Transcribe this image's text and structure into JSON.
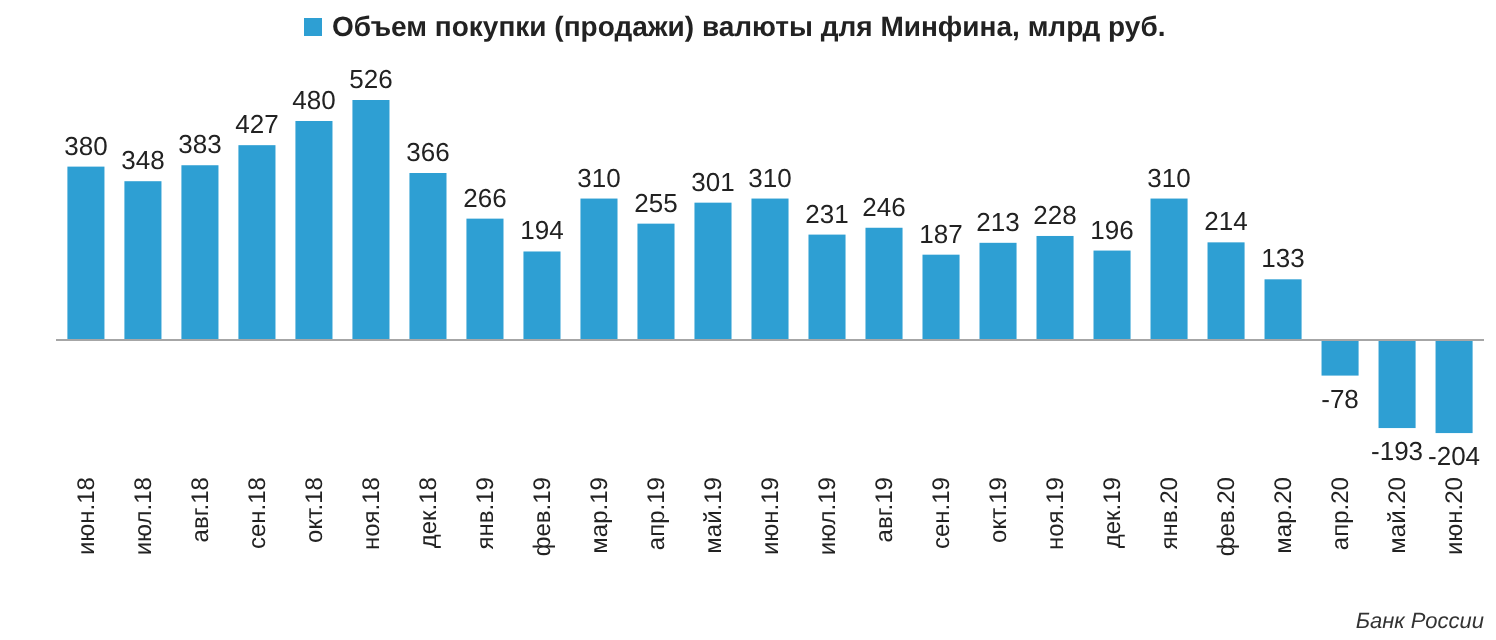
{
  "chart_data": {
    "type": "bar",
    "categories": [
      "июн.18",
      "июл.18",
      "авг.18",
      "сен.18",
      "окт.18",
      "ноя.18",
      "дек.18",
      "янв.19",
      "фев.19",
      "мар.19",
      "апр.19",
      "май.19",
      "июн.19",
      "июл.19",
      "авг.19",
      "сен.19",
      "окт.19",
      "ноя.19",
      "дек.19",
      "янв.20",
      "фев.20",
      "мар.20",
      "апр.20",
      "май.20",
      "июн.20"
    ],
    "series": [
      {
        "name": "Объем покупки (продажи) валюты для Минфина, млрд руб.",
        "color": "#2e9fd3",
        "values": [
          380,
          348,
          383,
          427,
          480,
          526,
          366,
          266,
          194,
          310,
          255,
          301,
          310,
          231,
          246,
          187,
          213,
          228,
          196,
          310,
          214,
          133,
          -78,
          -193,
          -204
        ]
      }
    ],
    "data_labels": true,
    "legend": "top",
    "annotations": [
      "Банк России"
    ]
  }
}
